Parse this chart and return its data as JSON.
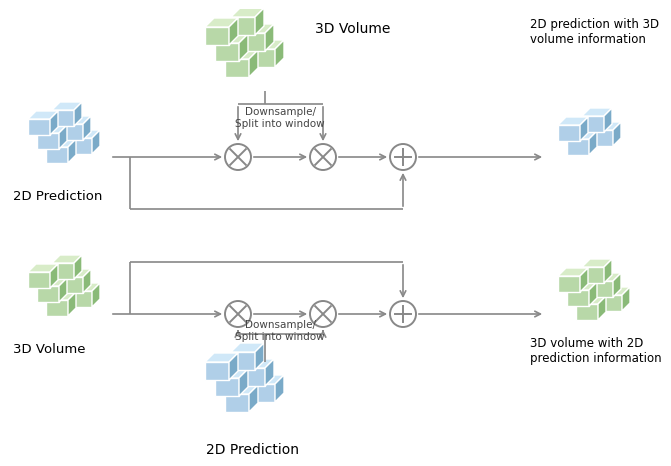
{
  "bg_color": "#ffffff",
  "arrow_color": "#888888",
  "cube_blue_face": "#b0cfe8",
  "cube_blue_top": "#d0e8f8",
  "cube_blue_side": "#7aaac8",
  "cube_green_face": "#b8d8a8",
  "cube_green_top": "#d8ecc8",
  "cube_green_side": "#8aba78",
  "label_2d_pred_top": "2D Prediction",
  "label_3d_vol_top": "3D Volume",
  "label_out_top": "2D prediction with 3D\nvolume information",
  "label_3d_vol_bot": "3D Volume",
  "label_2d_pred_bot": "2D Prediction",
  "label_out_bot": "3D volume with 2D\nprediction information",
  "label_downsample": "Downsample/\nSplit into window"
}
